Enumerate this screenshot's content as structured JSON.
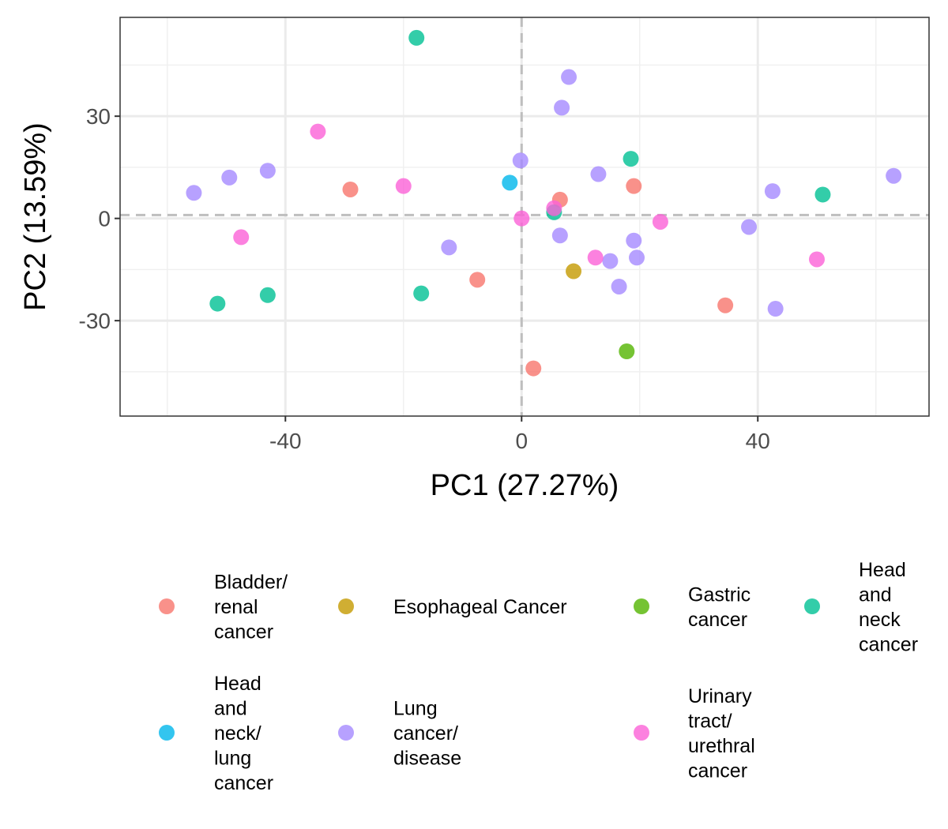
{
  "chart_data": {
    "type": "scatter",
    "xlabel": "PC1 (27.27%)",
    "ylabel": "PC2 (13.59%)",
    "xlim": [
      -68,
      69
    ],
    "ylim": [
      -58,
      59
    ],
    "x_ticks": [
      {
        "value": -40,
        "label": "-40"
      },
      {
        "value": 0,
        "label": "0"
      },
      {
        "value": 40,
        "label": "40"
      }
    ],
    "y_ticks": [
      {
        "value": 30,
        "label": "30"
      },
      {
        "value": 0,
        "label": "0"
      },
      {
        "value": -30,
        "label": "-30"
      }
    ],
    "x_minor": [
      -60,
      -20,
      20,
      60
    ],
    "y_minor": [
      45,
      15,
      -15,
      -45
    ],
    "grid": true,
    "reference_lines": {
      "x": 0,
      "y": 1
    },
    "legend_position": "bottom",
    "series": [
      {
        "name": "Bladder/ renal cancer",
        "label_lines": [
          "Bladder/",
          "renal",
          "cancer"
        ],
        "color": "#F8766D",
        "points": [
          [
            -29,
            8.5
          ],
          [
            -7.5,
            -18
          ],
          [
            2,
            -44
          ],
          [
            6.5,
            5.5
          ],
          [
            19,
            9.5
          ],
          [
            34.5,
            -25.5
          ]
        ]
      },
      {
        "name": "Esophageal Cancer",
        "label_lines": [
          "Esophageal Cancer"
        ],
        "color": "#C49A00",
        "points": [
          [
            8.8,
            -15.5
          ]
        ]
      },
      {
        "name": "Gastric cancer",
        "label_lines": [
          "Gastric",
          "cancer"
        ],
        "color": "#53B400",
        "points": [
          [
            17.8,
            -39
          ]
        ]
      },
      {
        "name": "Head and neck cancer",
        "label_lines": [
          "Head",
          "and",
          "neck",
          "cancer"
        ],
        "color": "#00C094",
        "points": [
          [
            -17.8,
            53
          ],
          [
            -17,
            -22
          ],
          [
            -51.5,
            -25
          ],
          [
            -43,
            -22.5
          ],
          [
            5.5,
            1.8
          ],
          [
            18.5,
            17.5
          ],
          [
            51,
            7
          ]
        ]
      },
      {
        "name": "Head and neck/ lung cancer",
        "label_lines": [
          "Head",
          "and",
          "neck/",
          "lung",
          "cancer"
        ],
        "color": "#00B6EB",
        "points": [
          [
            -2,
            10.5
          ]
        ]
      },
      {
        "name": "Lung cancer/ disease",
        "label_lines": [
          "Lung",
          "cancer/",
          "disease"
        ],
        "color": "#A58AFF",
        "points": [
          [
            8,
            41.5
          ],
          [
            6.8,
            32.5
          ],
          [
            -0.2,
            17
          ],
          [
            13,
            13
          ],
          [
            -55.5,
            7.5
          ],
          [
            -49.5,
            12
          ],
          [
            -43,
            14
          ],
          [
            -12.3,
            -8.5
          ],
          [
            6.5,
            -5
          ],
          [
            15,
            -12.5
          ],
          [
            16.5,
            -20
          ],
          [
            19,
            -6.5
          ],
          [
            19.5,
            -11.5
          ],
          [
            42.5,
            8
          ],
          [
            38.5,
            -2.5
          ],
          [
            43,
            -26.5
          ],
          [
            63,
            12.5
          ]
        ]
      },
      {
        "name": "Urinary tract/ urethral cancer",
        "label_lines": [
          "Urinary",
          "tract/",
          "urethral",
          "cancer"
        ],
        "color": "#FB61D7",
        "points": [
          [
            -34.5,
            25.5
          ],
          [
            -20,
            9.5
          ],
          [
            -47.5,
            -5.5
          ],
          [
            0,
            0
          ],
          [
            5.5,
            3
          ],
          [
            12.5,
            -11.5
          ],
          [
            23.5,
            -1
          ],
          [
            50,
            -12
          ]
        ]
      }
    ]
  }
}
